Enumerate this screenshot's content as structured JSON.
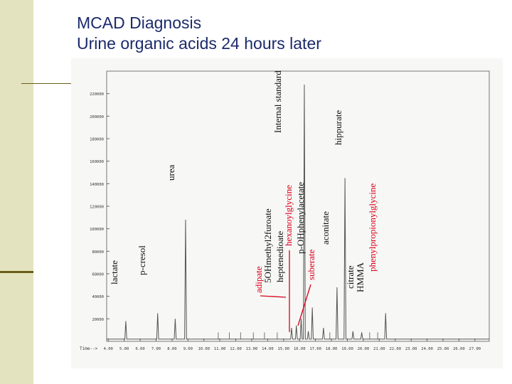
{
  "slide": {
    "title_line1": "MCAD Diagnosis",
    "title_line2": "Urine organic acids 24 hours later"
  },
  "colors": {
    "title": "#1b2a6b",
    "sidebar": "#e3e3bf",
    "sidebar_rule": "#6b5e1a",
    "trace": "#555555",
    "label_black": "#111111",
    "label_red": "#d9001b",
    "arrow": "#d9001b"
  },
  "chart_data": {
    "type": "line",
    "title": "",
    "xlabel": "Time",
    "ylabel": "",
    "xlim": [
      3.9,
      27.9
    ],
    "ylim": [
      0,
      240000
    ],
    "x_ticks": [
      "4.00",
      "5.00",
      "6.00",
      "7.00",
      "8.00",
      "9.00",
      "10.00",
      "11.00",
      "12.00",
      "13.00",
      "14.00",
      "15.00",
      "16.00",
      "17.00",
      "18.00",
      "19.00",
      "20.00",
      "21.00",
      "22.00",
      "23.00",
      "24.00",
      "25.00",
      "26.00",
      "27.00"
    ],
    "x_tick_label_prefix": "Time-->",
    "y_ticks": [
      20000,
      40000,
      60000,
      80000,
      100000,
      120000,
      140000,
      160000,
      180000,
      200000,
      220000
    ],
    "baseline": 2000,
    "peaks": [
      {
        "name": "lactate",
        "x": 5.1,
        "height": 18000,
        "color": "black"
      },
      {
        "name": "p-cresol",
        "x": 7.1,
        "height": 25000,
        "color": "black"
      },
      {
        "name": "",
        "x": 8.2,
        "height": 20000,
        "color": "black"
      },
      {
        "name": "urea",
        "x": 8.85,
        "height": 108000,
        "color": "black"
      },
      {
        "name": "adipate",
        "x": 15.5,
        "height": 12000,
        "color": "red"
      },
      {
        "name": "5OHmethyl2furoate",
        "x": 15.8,
        "height": 14000,
        "color": "black"
      },
      {
        "name": "heptenedioate",
        "x": 16.1,
        "height": 20000,
        "color": "black"
      },
      {
        "name": "Internal standard",
        "x": 16.3,
        "height": 228000,
        "color": "black"
      },
      {
        "name": "hexanoylglycine",
        "x": 16.55,
        "height": 9000,
        "color": "red"
      },
      {
        "name": "p-OHphenylacetate",
        "x": 16.8,
        "height": 30000,
        "color": "black"
      },
      {
        "name": "suberate",
        "x": 17.5,
        "height": 12000,
        "color": "red"
      },
      {
        "name": "aconitate",
        "x": 18.35,
        "height": 48000,
        "color": "black"
      },
      {
        "name": "hippurate",
        "x": 18.85,
        "height": 145000,
        "color": "black"
      },
      {
        "name": "citrate",
        "x": 19.35,
        "height": 9000,
        "color": "black"
      },
      {
        "name": "HMMA",
        "x": 19.9,
        "height": 8000,
        "color": "black"
      },
      {
        "name": "phenylpropionylglycine",
        "x": 21.4,
        "height": 25000,
        "color": "red"
      }
    ],
    "labels": [
      {
        "text": "lactate",
        "color": "black"
      },
      {
        "text": "p-cresol",
        "color": "black"
      },
      {
        "text": "urea",
        "color": "black"
      },
      {
        "text": "Internal standard",
        "color": "black"
      },
      {
        "text": "adipate",
        "color": "red"
      },
      {
        "text": "5OHmethyl2furoate",
        "color": "black"
      },
      {
        "text": "heptenedioate",
        "color": "black"
      },
      {
        "text": "hexanoylglycine",
        "color": "red"
      },
      {
        "text": "p-OHphenylacetate",
        "color": "black"
      },
      {
        "text": "suberate",
        "color": "red"
      },
      {
        "text": "aconitate",
        "color": "black"
      },
      {
        "text": "hippurate",
        "color": "black"
      },
      {
        "text": "citrate",
        "color": "black"
      },
      {
        "text": "HMMA",
        "color": "black"
      },
      {
        "text": "phenylpropionylglycine",
        "color": "red"
      }
    ]
  }
}
